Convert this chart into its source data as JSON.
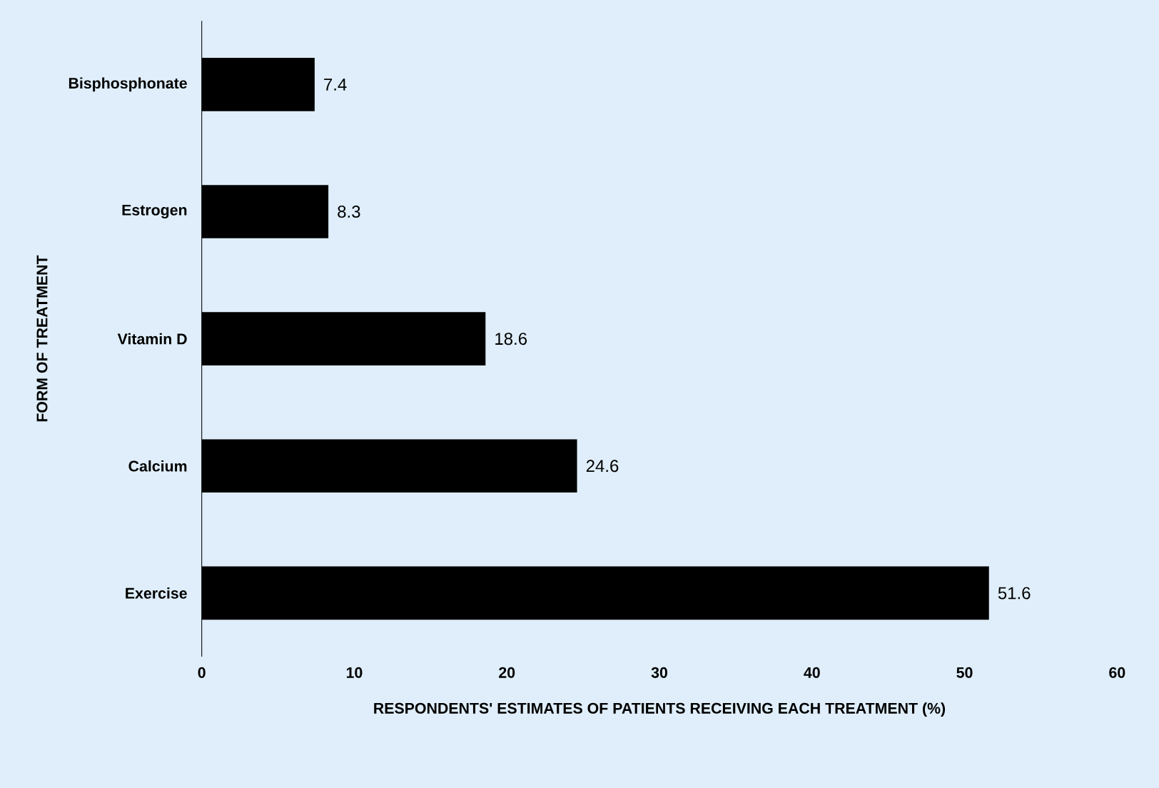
{
  "chart_data": {
    "type": "bar",
    "orientation": "horizontal",
    "xlabel": "RESPONDENTS' ESTIMATES OF PATIENTS RECEIVING EACH TREATMENT (%)",
    "ylabel": "FORM OF TREATMENT",
    "categories": [
      "Bisphosphonate",
      "Estrogen",
      "Vitamin D",
      "Calcium",
      "Exercise"
    ],
    "values": [
      7.4,
      8.3,
      18.6,
      24.6,
      51.6
    ],
    "color": "#000000",
    "data_labels": true,
    "xlim": [
      0,
      60
    ],
    "xticks": [
      0,
      10,
      20,
      30,
      40,
      50,
      60
    ],
    "grid": false
  }
}
